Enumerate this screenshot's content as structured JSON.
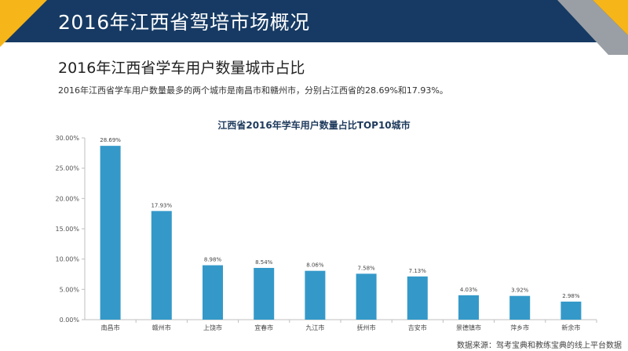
{
  "header": {
    "title": "2016年江西省驾培市场概况"
  },
  "section": {
    "title": "2016年江西省学车用户数量城市占比",
    "summary": "2016年江西省学车用户数量最多的两个城市是南昌市和赣州市，分别占江西省的28.69%和17.93%。"
  },
  "footer": {
    "source": "数据来源：驾考宝典和教练宝典的线上平台数据"
  },
  "colors": {
    "header": "#163a63",
    "accent": "#f6b519",
    "gray": "#9a9fa5",
    "bar": "#3499c9"
  },
  "chart_data": {
    "type": "bar",
    "title": "江西省2016年学车用户数量占比TOP10城市",
    "xlabel": "",
    "ylabel": "",
    "categories": [
      "南昌市",
      "赣州市",
      "上饶市",
      "宜春市",
      "九江市",
      "抚州市",
      "吉安市",
      "景德镇市",
      "萍乡市",
      "新余市"
    ],
    "values": [
      28.69,
      17.93,
      8.98,
      8.54,
      8.06,
      7.58,
      7.13,
      4.03,
      3.92,
      2.98
    ],
    "value_labels": [
      "28.69%",
      "17.93%",
      "8.98%",
      "8.54%",
      "8.06%",
      "7.58%",
      "7.13%",
      "4.03%",
      "3.92%",
      "2.98%"
    ],
    "ylim": [
      0,
      30
    ],
    "yticks": [
      0,
      5,
      10,
      15,
      20,
      25,
      30
    ],
    "ytick_labels": [
      "0.00%",
      "5.00%",
      "10.00%",
      "15.00%",
      "20.00%",
      "25.00%",
      "30.00%"
    ],
    "grid": false,
    "legend": "none"
  }
}
